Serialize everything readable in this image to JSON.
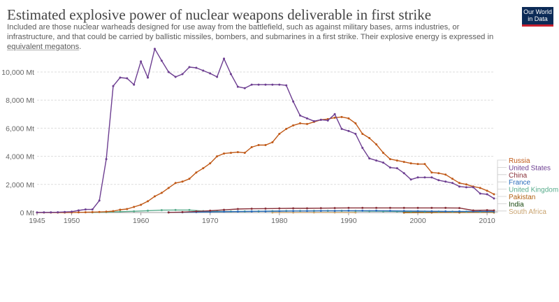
{
  "header": {
    "title": "Estimated explosive power of nuclear weapons deliverable in first strike",
    "subtitle_before_link": "Included are those nuclear warheads designed for use away from the battlefield, such as against military bases, arms industries, or infrastructure, and that could be carried by ballistic missiles, bombers, and submarines in a first strike. Their explosive energy is expressed in ",
    "subtitle_link": "equivalent megatons",
    "subtitle_after_link": ".",
    "logo_line1": "Our World",
    "logo_line2": "in Data"
  },
  "colors": {
    "United States": "#6d3e91",
    "Russia": "#c05917",
    "China": "#883039",
    "France": "#286bbb",
    "United Kingdom": "#58ac8c",
    "Pakistan": "#b16214",
    "India": "#18470f",
    "South Africa": "#c9a36f",
    "gridline": "#dddddd",
    "axis_text": "#666666"
  },
  "chart_data": {
    "type": "line",
    "xlim": [
      1945,
      2011
    ],
    "ylim": [
      0,
      10000
    ],
    "y_ticks": [
      0,
      2000,
      4000,
      6000,
      8000,
      10000
    ],
    "y_tick_labels": [
      "0 Mt",
      "2,000 Mt",
      "4,000 Mt",
      "6,000 Mt",
      "8,000 Mt",
      "10,000 Mt"
    ],
    "x_ticks": [
      1945,
      1950,
      1960,
      1970,
      1980,
      1990,
      2000,
      2010
    ],
    "x_tick_labels": [
      "1945",
      "1950",
      "1960",
      "1970",
      "1980",
      "1990",
      "2000",
      "2010"
    ],
    "grid": "horizontal",
    "legend_position": "right",
    "legend_order": [
      "Russia",
      "United States",
      "China",
      "France",
      "United Kingdom",
      "Pakistan",
      "India",
      "South Africa"
    ],
    "series": [
      {
        "name": "United States",
        "x": [
          1945,
          1946,
          1947,
          1948,
          1949,
          1950,
          1951,
          1952,
          1953,
          1954,
          1955,
          1956,
          1957,
          1958,
          1959,
          1960,
          1961,
          1962,
          1963,
          1964,
          1965,
          1966,
          1967,
          1968,
          1969,
          1970,
          1971,
          1972,
          1973,
          1974,
          1975,
          1976,
          1977,
          1978,
          1979,
          1980,
          1981,
          1982,
          1983,
          1984,
          1985,
          1986,
          1987,
          1988,
          1989,
          1990,
          1991,
          1992,
          1993,
          1994,
          1995,
          1996,
          1997,
          1998,
          1999,
          2000,
          2001,
          2002,
          2003,
          2004,
          2005,
          2006,
          2007,
          2008,
          2009,
          2010,
          2011
        ],
        "y": [
          5,
          10,
          15,
          20,
          40,
          60,
          150,
          220,
          220,
          850,
          3800,
          9000,
          9600,
          9550,
          9100,
          10750,
          9600,
          11650,
          10800,
          10000,
          9650,
          9850,
          10350,
          10300,
          10100,
          9900,
          9650,
          10950,
          9850,
          8950,
          8850,
          9100,
          9100,
          9100,
          9100,
          9100,
          9050,
          7900,
          6900,
          6700,
          6500,
          6600,
          6550,
          7000,
          5950,
          5800,
          5600,
          4600,
          3850,
          3700,
          3550,
          3200,
          3150,
          2800,
          2350,
          2500,
          2500,
          2500,
          2300,
          2200,
          2100,
          1850,
          1800,
          1800,
          1350,
          1300,
          1000
        ]
      },
      {
        "name": "Russia",
        "x": [
          1945,
          1946,
          1947,
          1948,
          1949,
          1950,
          1951,
          1952,
          1953,
          1954,
          1955,
          1956,
          1957,
          1958,
          1959,
          1960,
          1961,
          1962,
          1963,
          1964,
          1965,
          1966,
          1967,
          1968,
          1969,
          1970,
          1971,
          1972,
          1973,
          1974,
          1975,
          1976,
          1977,
          1978,
          1979,
          1980,
          1981,
          1982,
          1983,
          1984,
          1985,
          1986,
          1987,
          1988,
          1989,
          1990,
          1991,
          1992,
          1993,
          1994,
          1995,
          1996,
          1997,
          1998,
          1999,
          2000,
          2001,
          2002,
          2003,
          2004,
          2005,
          2006,
          2007,
          2008,
          2009,
          2010,
          2011
        ],
        "y": [
          0,
          0,
          0,
          0,
          0,
          5,
          10,
          20,
          30,
          40,
          60,
          100,
          200,
          250,
          400,
          550,
          800,
          1150,
          1400,
          1750,
          2100,
          2200,
          2400,
          2850,
          3150,
          3500,
          4000,
          4200,
          4250,
          4300,
          4250,
          4650,
          4800,
          4800,
          5000,
          5600,
          5950,
          6200,
          6350,
          6300,
          6450,
          6600,
          6650,
          6750,
          6800,
          6700,
          6350,
          5600,
          5300,
          4850,
          4250,
          3800,
          3700,
          3600,
          3500,
          3450,
          3450,
          2850,
          2800,
          2700,
          2400,
          2100,
          2000,
          1850,
          1750,
          1550,
          1300
        ]
      },
      {
        "name": "China",
        "x": [
          1964,
          1966,
          1968,
          1970,
          1972,
          1974,
          1976,
          1978,
          1980,
          1982,
          1984,
          1986,
          1988,
          1990,
          1992,
          1994,
          1996,
          1998,
          2000,
          2002,
          2004,
          2006,
          2008,
          2010,
          2011
        ],
        "y": [
          5,
          30,
          80,
          130,
          190,
          250,
          270,
          280,
          290,
          300,
          300,
          310,
          320,
          330,
          330,
          330,
          330,
          330,
          330,
          330,
          330,
          320,
          150,
          170,
          150
        ]
      },
      {
        "name": "France",
        "x": [
          1964,
          1966,
          1968,
          1970,
          1972,
          1974,
          1976,
          1978,
          1980,
          1982,
          1984,
          1986,
          1988,
          1990,
          1992,
          1994,
          1996,
          1998,
          2000,
          2002,
          2004,
          2006,
          2008,
          2010,
          2011
        ],
        "y": [
          10,
          20,
          30,
          40,
          60,
          70,
          80,
          90,
          100,
          110,
          110,
          120,
          120,
          130,
          130,
          130,
          120,
          110,
          100,
          90,
          80,
          80,
          80,
          80,
          80
        ]
      },
      {
        "name": "United Kingdom",
        "x": [
          1953,
          1955,
          1957,
          1959,
          1961,
          1963,
          1965,
          1967,
          1969,
          1971,
          1973,
          1975,
          1977,
          1979,
          1981,
          1983,
          1985,
          1987,
          1989,
          1991,
          1993,
          1995,
          1997,
          1999,
          2001,
          2003,
          2005,
          2007,
          2009,
          2011
        ],
        "y": [
          10,
          30,
          60,
          90,
          130,
          170,
          180,
          180,
          100,
          80,
          70,
          80,
          90,
          100,
          110,
          110,
          120,
          120,
          120,
          110,
          100,
          90,
          80,
          70,
          70,
          70,
          60,
          60,
          60,
          60
        ]
      },
      {
        "name": "Pakistan",
        "x": [
          1998,
          2002,
          2006,
          2011
        ],
        "y": [
          2,
          4,
          6,
          8
        ]
      },
      {
        "name": "India",
        "x": [
          1998,
          2002,
          2006,
          2011
        ],
        "y": [
          2,
          5,
          8,
          12
        ]
      },
      {
        "name": "South Africa",
        "x": [
          1979,
          1982,
          1985,
          1988,
          1991
        ],
        "y": [
          2,
          3,
          4,
          4,
          2
        ]
      }
    ]
  }
}
